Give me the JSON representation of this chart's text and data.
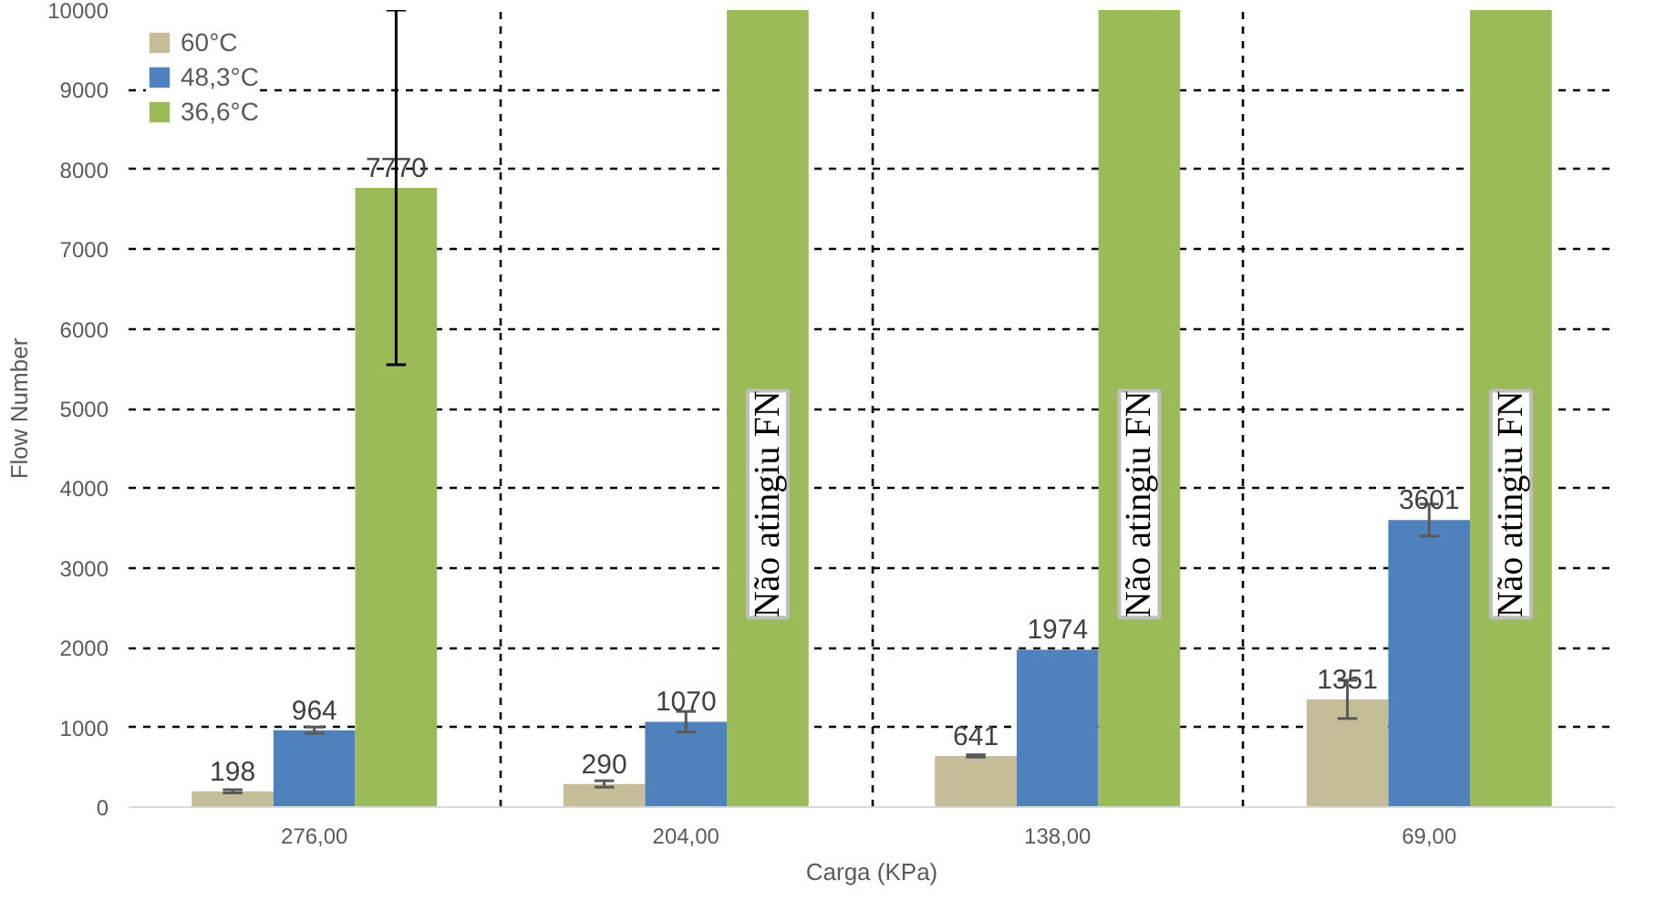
{
  "chart_data": {
    "type": "bar",
    "xlabel": "Carga (KPa)",
    "ylabel": "Flow Number",
    "categories": [
      "276,00",
      "204,00",
      "138,00",
      "69,00"
    ],
    "series": [
      {
        "name": "60°C",
        "color": "#c4bd97",
        "values": [
          198,
          290,
          641,
          1351
        ],
        "errors": [
          20,
          40,
          15,
          240
        ],
        "value_labels": [
          "198",
          "290",
          "641",
          "1351"
        ]
      },
      {
        "name": "48,3°C",
        "color": "#4f81bd",
        "values": [
          964,
          1070,
          1974,
          3601
        ],
        "errors": [
          40,
          130,
          null,
          200
        ],
        "value_labels": [
          "964",
          "1070",
          "1974",
          "3601"
        ]
      },
      {
        "name": "36,6°C",
        "color": "#9bbb59",
        "values": [
          7770,
          10000,
          10000,
          10000
        ],
        "errors": [
          [
            5550,
            10000
          ],
          null,
          null,
          null
        ],
        "value_labels": [
          "7770",
          null,
          null,
          null
        ]
      }
    ],
    "ylim": [
      0,
      10000
    ],
    "yticks": [
      0,
      1000,
      2000,
      3000,
      4000,
      5000,
      6000,
      7000,
      8000,
      9000,
      10000
    ],
    "grid": true,
    "legend": "top left",
    "annotations": [
      "Não atingiu FN",
      "Não atingiu FN",
      "Não atingiu FN"
    ]
  }
}
